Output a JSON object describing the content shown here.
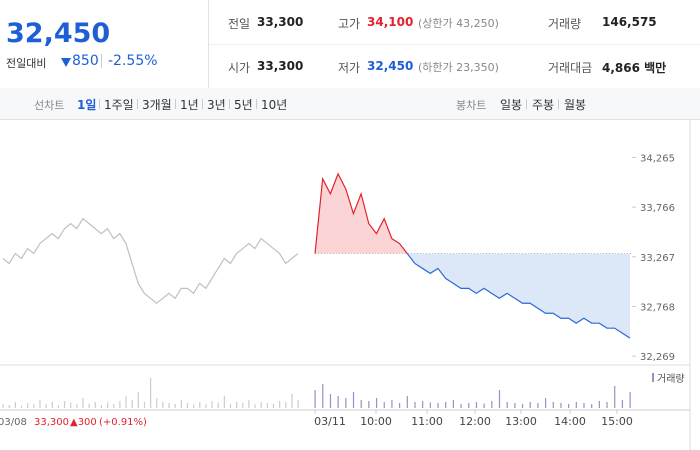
{
  "header": {
    "price": "32,450",
    "change_label": "전일대비",
    "change": "850",
    "rate": "-2.55%",
    "stats": [
      {
        "label": "전일",
        "value": "33,300"
      },
      {
        "label": "고가",
        "value": "34,100",
        "note": "(상한가 43,250)"
      },
      {
        "label": "거래량",
        "value": "146,575"
      },
      {
        "label": "시가",
        "value": "33,300"
      },
      {
        "label": "저가",
        "value": "32,450",
        "note": "(하한가 23,350)"
      },
      {
        "label": "거래대금",
        "value": "4,866 백만"
      }
    ]
  },
  "tabs": {
    "line_label": "선차트",
    "line_tabs": [
      "1일",
      "1주일",
      "3개월",
      "1년",
      "3년",
      "5년",
      "10년"
    ],
    "candle_label": "봉차트",
    "candle_tabs": [
      "일봉",
      "주봉",
      "월봉"
    ]
  },
  "chart_data": {
    "type": "line",
    "prev_close": 33300,
    "ylim": [
      32180,
      34390
    ],
    "yticks": [
      {
        "value": 32269,
        "label": "32,269"
      },
      {
        "value": 32768,
        "label": "32,768"
      },
      {
        "value": 33267,
        "label": "33,267"
      },
      {
        "value": 33766,
        "label": "33,766"
      },
      {
        "value": 34265,
        "label": "34,265"
      }
    ],
    "x_labels": [
      "03/11",
      "10:00",
      "11:00",
      "12:00",
      "13:00",
      "14:00",
      "15:00"
    ],
    "series": [
      {
        "name": "03/08",
        "color": "#c0c0c0",
        "values": [
          33250,
          33200,
          33300,
          33250,
          33350,
          33300,
          33400,
          33450,
          33500,
          33450,
          33550,
          33600,
          33550,
          33650,
          33600,
          33550,
          33500,
          33550,
          33450,
          33500,
          33400,
          33200,
          33000,
          32900,
          32850,
          32800,
          32850,
          32900,
          32850,
          32950,
          32950,
          32900,
          33000,
          32950,
          33050,
          33150,
          33250,
          33200,
          33300,
          33350,
          33400,
          33350,
          33450,
          33400,
          33350,
          33300,
          33200,
          33250,
          33300
        ]
      },
      {
        "name": "03/11",
        "color_up": "#e5212d",
        "color_down": "#2a6ad6",
        "values": [
          33300,
          34050,
          33900,
          34100,
          33950,
          33700,
          33900,
          33600,
          33500,
          33650,
          33450,
          33400,
          33300,
          33200,
          33150,
          33100,
          33150,
          33050,
          33000,
          32950,
          32950,
          32900,
          32950,
          32900,
          32850,
          32900,
          32850,
          32800,
          32800,
          32750,
          32700,
          32700,
          32650,
          32650,
          32600,
          32650,
          32600,
          32600,
          32550,
          32550,
          32500,
          32450
        ]
      }
    ],
    "volume": {
      "name": "거래량",
      "color": "#9b8fc9",
      "ylim": [
        0,
        2000
      ],
      "prev": [
        200,
        150,
        300,
        120,
        250,
        180,
        400,
        220,
        300,
        150,
        350,
        260,
        180,
        500,
        220,
        300,
        150,
        280,
        200,
        350,
        600,
        400,
        800,
        300,
        1500,
        500,
        300,
        250,
        200,
        400,
        250,
        180,
        300,
        200,
        350,
        280,
        600,
        200,
        300,
        250,
        400,
        180,
        300,
        250,
        200,
        350,
        300,
        700,
        400
      ],
      "today": [
        900,
        1200,
        700,
        600,
        500,
        800,
        400,
        350,
        500,
        300,
        400,
        250,
        600,
        300,
        350,
        280,
        250,
        300,
        400,
        200,
        250,
        300,
        220,
        350,
        900,
        300,
        250,
        200,
        300,
        250,
        500,
        300,
        250,
        200,
        300,
        250,
        200,
        350,
        300,
        1100,
        400,
        800
      ]
    },
    "prev_date": "03/08",
    "prev_close_label": "33,300",
    "prev_change": "▲300",
    "prev_rate": "(+0.91%)"
  }
}
